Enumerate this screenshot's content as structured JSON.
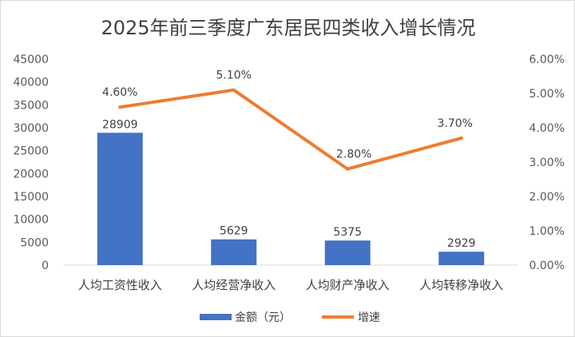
{
  "chart_data": {
    "type": "bar+line",
    "title": "2025年前三季度广东居民四类收入增长情况",
    "categories": [
      "人均工资性收入",
      "人均经营净收入",
      "人均财产净收入",
      "人均转移净收入"
    ],
    "series": [
      {
        "name": "金额（元）",
        "type": "bar",
        "axis": "left",
        "color": "#4472C4",
        "values": [
          28909,
          5629,
          5375,
          2929
        ],
        "labels": [
          "28909",
          "5629",
          "5375",
          "2929"
        ]
      },
      {
        "name": "增速",
        "type": "line",
        "axis": "right",
        "color": "#ED7D31",
        "values": [
          4.6,
          5.1,
          2.8,
          3.7
        ],
        "labels": [
          "4.60%",
          "5.10%",
          "2.80%",
          "3.70%"
        ]
      }
    ],
    "y_left": {
      "min": 0,
      "max": 45000,
      "ticks": [
        "0",
        "5000",
        "10000",
        "15000",
        "20000",
        "25000",
        "30000",
        "35000",
        "40000",
        "45000"
      ]
    },
    "y_right": {
      "min": 0,
      "max": 6,
      "ticks": [
        "0.00%",
        "1.00%",
        "2.00%",
        "3.00%",
        "4.00%",
        "5.00%",
        "6.00%"
      ]
    },
    "grid": false,
    "legend": "bottom"
  }
}
